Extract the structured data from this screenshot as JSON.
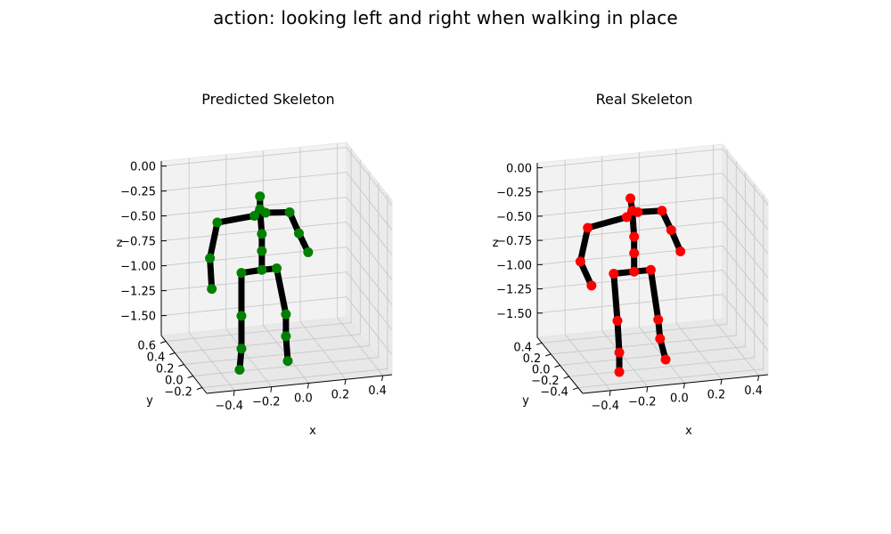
{
  "figure_title": "action: looking left and right when walking in place",
  "chart_data": [
    {
      "type": "scatter",
      "projection": "3d",
      "title": "Predicted Skeleton",
      "xlabel": "x",
      "ylabel": "y",
      "zlabel": "z",
      "x_ticks": [
        "−0.4",
        "−0.2",
        "0.0",
        "0.2",
        "0.4"
      ],
      "y_ticks": [
        "−0.2",
        "0.0",
        "0.2",
        "0.4",
        "0.6"
      ],
      "z_ticks": [
        "0.00",
        "−0.25",
        "−0.50",
        "−0.75",
        "−1.00",
        "−1.25",
        "−1.50"
      ],
      "marker_color": "#008000",
      "bone_color": "#000000",
      "joints": [
        {
          "name": "head",
          "x": -0.14,
          "y": 0.1,
          "z": -0.09
        },
        {
          "name": "neck",
          "x": -0.14,
          "y": 0.1,
          "z": -0.22
        },
        {
          "name": "shoulder_l",
          "x": -0.17,
          "y": 0.1,
          "z": -0.28
        },
        {
          "name": "shoulder_r",
          "x": -0.11,
          "y": 0.1,
          "z": -0.26
        },
        {
          "name": "r_shoulder_outer",
          "x": 0.02,
          "y": 0.1,
          "z": -0.28
        },
        {
          "name": "r_elbow",
          "x": 0.07,
          "y": 0.1,
          "z": -0.5
        },
        {
          "name": "r_wrist",
          "x": 0.12,
          "y": 0.1,
          "z": -0.7
        },
        {
          "name": "l_shoulder_outer",
          "x": -0.37,
          "y": 0.1,
          "z": -0.31
        },
        {
          "name": "l_elbow",
          "x": -0.41,
          "y": 0.1,
          "z": -0.66
        },
        {
          "name": "l_wrist",
          "x": -0.4,
          "y": 0.1,
          "z": -0.97
        },
        {
          "name": "spine",
          "x": -0.13,
          "y": 0.1,
          "z": -0.47
        },
        {
          "name": "spine_low",
          "x": -0.13,
          "y": 0.1,
          "z": -0.64
        },
        {
          "name": "hip_c",
          "x": -0.13,
          "y": 0.1,
          "z": -0.83
        },
        {
          "name": "hip_l",
          "x": -0.24,
          "y": 0.1,
          "z": -0.84
        },
        {
          "name": "hip_r",
          "x": -0.05,
          "y": 0.1,
          "z": -0.83
        },
        {
          "name": "knee_l",
          "x": -0.24,
          "y": 0.1,
          "z": -1.27
        },
        {
          "name": "ankle_l",
          "x": -0.24,
          "y": 0.1,
          "z": -1.6
        },
        {
          "name": "foot_l",
          "x": -0.25,
          "y": 0.1,
          "z": -1.81
        },
        {
          "name": "knee_r",
          "x": 0.0,
          "y": 0.1,
          "z": -1.3
        },
        {
          "name": "ankle_r",
          "x": 0.0,
          "y": 0.1,
          "z": -1.52
        },
        {
          "name": "foot_r",
          "x": 0.01,
          "y": 0.1,
          "z": -1.77
        }
      ],
      "bones": [
        [
          "head",
          "neck"
        ],
        [
          "neck",
          "shoulder_l"
        ],
        [
          "neck",
          "shoulder_r"
        ],
        [
          "shoulder_r",
          "r_shoulder_outer"
        ],
        [
          "r_shoulder_outer",
          "r_elbow"
        ],
        [
          "r_elbow",
          "r_wrist"
        ],
        [
          "shoulder_l",
          "l_shoulder_outer"
        ],
        [
          "l_shoulder_outer",
          "l_elbow"
        ],
        [
          "l_elbow",
          "l_wrist"
        ],
        [
          "neck",
          "spine"
        ],
        [
          "spine",
          "spine_low"
        ],
        [
          "spine_low",
          "hip_c"
        ],
        [
          "hip_c",
          "hip_l"
        ],
        [
          "hip_c",
          "hip_r"
        ],
        [
          "hip_l",
          "knee_l"
        ],
        [
          "knee_l",
          "ankle_l"
        ],
        [
          "ankle_l",
          "foot_l"
        ],
        [
          "hip_r",
          "knee_r"
        ],
        [
          "knee_r",
          "ankle_r"
        ],
        [
          "ankle_r",
          "foot_r"
        ]
      ]
    },
    {
      "type": "scatter",
      "projection": "3d",
      "title": "Real Skeleton",
      "xlabel": "x",
      "ylabel": "y",
      "zlabel": "z",
      "x_ticks": [
        "−0.4",
        "−0.2",
        "0.0",
        "0.2",
        "0.4"
      ],
      "y_ticks": [
        "−0.4",
        "−0.2",
        "0.0",
        "0.2",
        "0.4"
      ],
      "z_ticks": [
        "0.00",
        "−0.25",
        "−0.50",
        "−0.75",
        "−1.00",
        "−1.25",
        "−1.50"
      ],
      "marker_color": "#ff0000",
      "bone_color": "#000000",
      "joints": [
        {
          "name": "head",
          "x": -0.17,
          "y": 0.0,
          "z": -0.1
        },
        {
          "name": "neck",
          "x": -0.16,
          "y": 0.0,
          "z": -0.23
        },
        {
          "name": "shoulder_l",
          "x": -0.19,
          "y": 0.0,
          "z": -0.29
        },
        {
          "name": "shoulder_r",
          "x": -0.13,
          "y": 0.0,
          "z": -0.25
        },
        {
          "name": "r_shoulder_outer",
          "x": 0.0,
          "y": 0.0,
          "z": -0.26
        },
        {
          "name": "r_elbow",
          "x": 0.05,
          "y": 0.0,
          "z": -0.47
        },
        {
          "name": "r_wrist",
          "x": 0.1,
          "y": 0.0,
          "z": -0.7
        },
        {
          "name": "l_shoulder_outer",
          "x": -0.4,
          "y": 0.0,
          "z": -0.36
        },
        {
          "name": "l_elbow",
          "x": -0.44,
          "y": 0.0,
          "z": -0.7
        },
        {
          "name": "l_wrist",
          "x": -0.38,
          "y": 0.0,
          "z": -0.96
        },
        {
          "name": "spine",
          "x": -0.15,
          "y": 0.0,
          "z": -0.5
        },
        {
          "name": "spine_low",
          "x": -0.15,
          "y": 0.0,
          "z": -0.67
        },
        {
          "name": "hip_c",
          "x": -0.15,
          "y": 0.0,
          "z": -0.86
        },
        {
          "name": "hip_l",
          "x": -0.26,
          "y": 0.0,
          "z": -0.86
        },
        {
          "name": "hip_r",
          "x": -0.06,
          "y": 0.0,
          "z": -0.86
        },
        {
          "name": "knee_l",
          "x": -0.24,
          "y": 0.0,
          "z": -1.35
        },
        {
          "name": "ankle_l",
          "x": -0.23,
          "y": 0.0,
          "z": -1.68
        },
        {
          "name": "foot_l",
          "x": -0.23,
          "y": 0.0,
          "z": -1.88
        },
        {
          "name": "knee_r",
          "x": -0.02,
          "y": 0.0,
          "z": -1.38
        },
        {
          "name": "ankle_r",
          "x": -0.01,
          "y": 0.0,
          "z": -1.58
        },
        {
          "name": "foot_r",
          "x": 0.02,
          "y": 0.0,
          "z": -1.8
        }
      ],
      "bones": [
        [
          "head",
          "neck"
        ],
        [
          "neck",
          "shoulder_l"
        ],
        [
          "neck",
          "shoulder_r"
        ],
        [
          "shoulder_r",
          "r_shoulder_outer"
        ],
        [
          "r_shoulder_outer",
          "r_elbow"
        ],
        [
          "r_elbow",
          "r_wrist"
        ],
        [
          "shoulder_l",
          "l_shoulder_outer"
        ],
        [
          "l_shoulder_outer",
          "l_elbow"
        ],
        [
          "l_elbow",
          "l_wrist"
        ],
        [
          "neck",
          "spine"
        ],
        [
          "spine",
          "spine_low"
        ],
        [
          "spine_low",
          "hip_c"
        ],
        [
          "hip_c",
          "hip_l"
        ],
        [
          "hip_c",
          "hip_r"
        ],
        [
          "hip_l",
          "knee_l"
        ],
        [
          "knee_l",
          "ankle_l"
        ],
        [
          "ankle_l",
          "foot_l"
        ],
        [
          "hip_r",
          "knee_r"
        ],
        [
          "knee_r",
          "ankle_r"
        ],
        [
          "ankle_r",
          "foot_r"
        ]
      ]
    }
  ]
}
